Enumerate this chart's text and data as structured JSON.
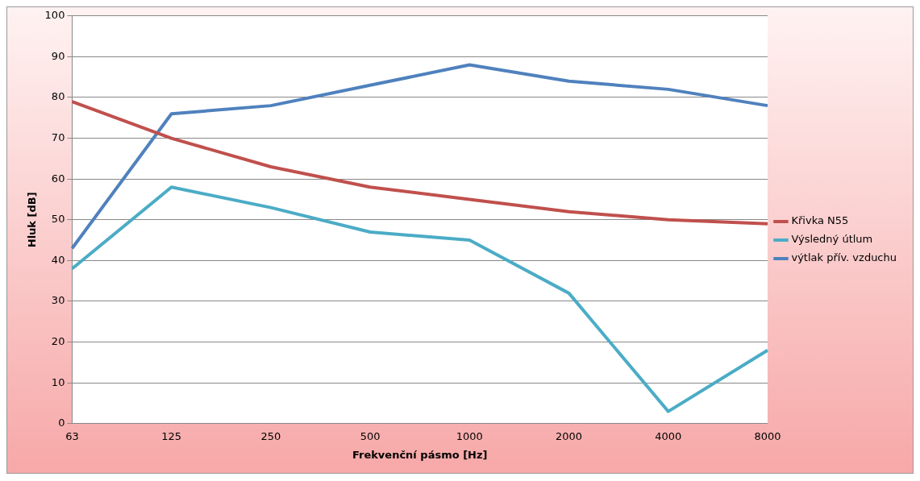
{
  "chart_data": {
    "type": "line",
    "xlabel": "Frekvenční pásmo [Hz]",
    "ylabel": "Hluk [dB]",
    "categories": [
      "63",
      "125",
      "250",
      "500",
      "1000",
      "2000",
      "4000",
      "8000"
    ],
    "series": [
      {
        "name": "Křivka N55",
        "color": "#c0504d",
        "values": [
          79,
          70,
          63,
          58,
          55,
          52,
          50,
          49
        ]
      },
      {
        "name": "Výsledný útlum",
        "color": "#4bacc6",
        "values": [
          38,
          58,
          53,
          47,
          45,
          32,
          3,
          18
        ]
      },
      {
        "name": "výtlak přív. vzduchu",
        "color": "#4f81bd",
        "values": [
          43,
          76,
          78,
          83,
          88,
          84,
          82,
          78
        ]
      }
    ],
    "ylim": [
      0,
      100
    ],
    "yticks": [
      0,
      10,
      20,
      30,
      40,
      50,
      60,
      70,
      80,
      90,
      100
    ],
    "grid": "y",
    "legend": "right",
    "marker": "none"
  }
}
